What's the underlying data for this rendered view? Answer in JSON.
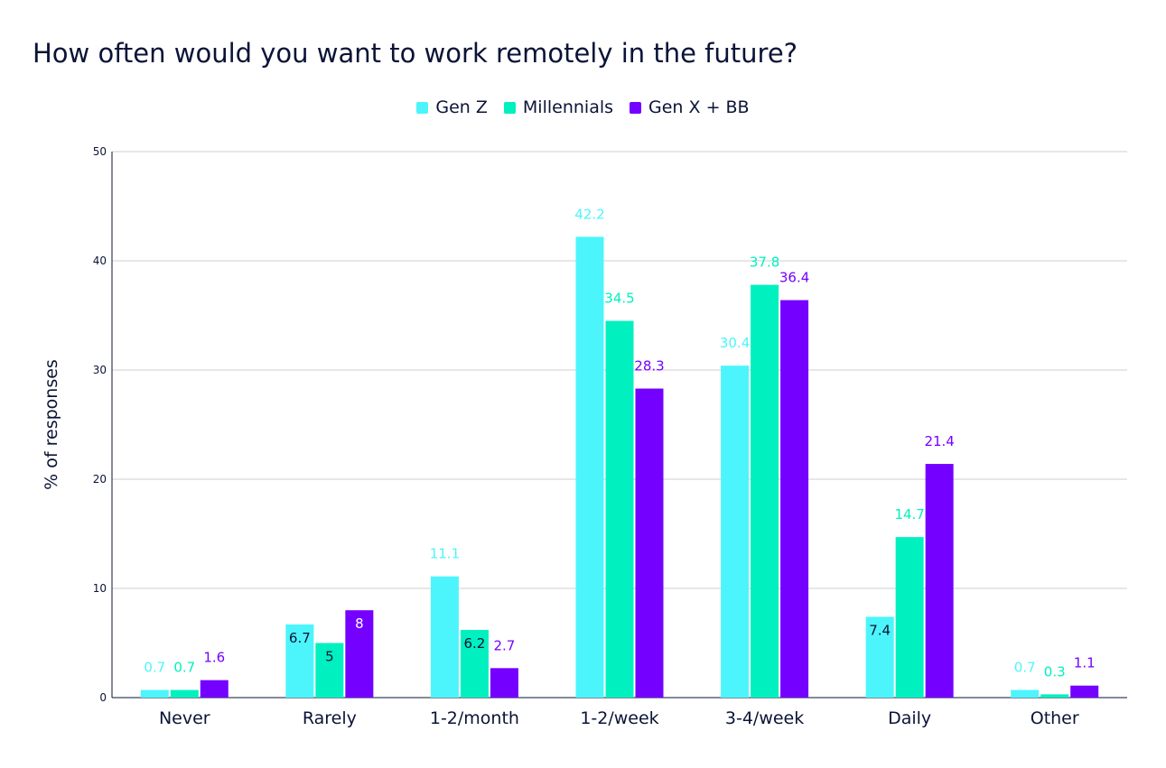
{
  "title": "How often would you want to work remotely in the future?",
  "chart_data": {
    "type": "bar",
    "title": "How often would you want to work remotely in the future?",
    "xlabel": "",
    "ylabel": "% of responses",
    "ylim": [
      0,
      50
    ],
    "yticks": [
      0,
      10,
      20,
      30,
      40,
      50
    ],
    "grid": true,
    "legend_position": "top-center",
    "categories": [
      "Never",
      "Rarely",
      "1-2/month",
      "1-2/week",
      "3-4/week",
      "Daily",
      "Other"
    ],
    "series": [
      {
        "name": "Gen Z",
        "color": "#4cf5fb",
        "values": [
          0.7,
          6.7,
          11.1,
          42.2,
          30.4,
          7.4,
          0.7
        ]
      },
      {
        "name": "Millennials",
        "color": "#00f0c0",
        "values": [
          0.7,
          5,
          6.2,
          34.5,
          37.8,
          14.7,
          0.3
        ]
      },
      {
        "name": "Gen X + BB",
        "color": "#7400ff",
        "values": [
          1.6,
          8,
          2.7,
          28.3,
          36.4,
          21.4,
          1.1
        ]
      }
    ]
  }
}
